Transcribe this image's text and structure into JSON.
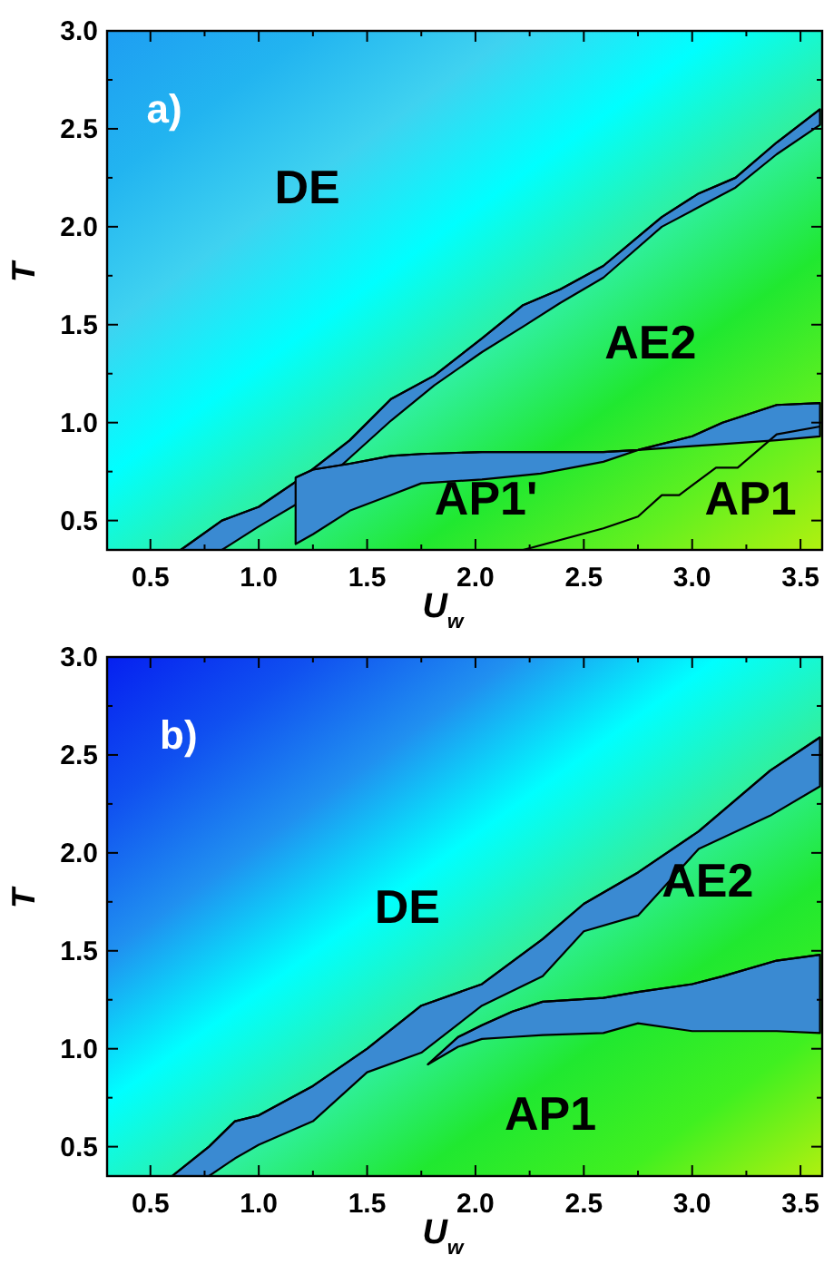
{
  "chart_data": [
    {
      "type": "area",
      "xlabel": "U$_{w}$",
      "ylabel": "T",
      "xlim": [
        0.3,
        3.6
      ],
      "ylim": [
        0.35,
        3.0
      ],
      "xticks": [
        {
          "value": 0.5,
          "label": "0.5"
        },
        {
          "value": 0.75,
          "label": null
        },
        {
          "value": 1,
          "label": "1.0"
        },
        {
          "value": 1.25,
          "label": null
        },
        {
          "value": 1.5,
          "label": "1.5"
        },
        {
          "value": 1.75,
          "label": null
        },
        {
          "value": 2,
          "label": "2.0"
        },
        {
          "value": 2.25,
          "label": null
        },
        {
          "value": 2.5,
          "label": "2.5"
        },
        {
          "value": 2.75,
          "label": null
        },
        {
          "value": 3,
          "label": "3.0"
        },
        {
          "value": 3.25,
          "label": null
        },
        {
          "value": 3.5,
          "label": "3.5"
        }
      ],
      "yticks": [
        {
          "value": 0.5,
          "label": "0.5"
        },
        {
          "value": 0.75,
          "label": null
        },
        {
          "value": 1,
          "label": "1.0"
        },
        {
          "value": 1.25,
          "label": null
        },
        {
          "value": 1.5,
          "label": "1.5"
        },
        {
          "value": 1.75,
          "label": null
        },
        {
          "value": 2,
          "label": "2.0"
        },
        {
          "value": 2.25,
          "label": null
        },
        {
          "value": 2.5,
          "label": "2.5"
        },
        {
          "value": 2.75,
          "label": null
        },
        {
          "value": 3,
          "label": "3.0"
        }
      ],
      "series": [
        {
          "type": "line",
          "color": "#000000",
          "x": [
            0.64,
            0.83,
            1.0,
            1.2,
            1.42,
            1.61,
            1.81,
            2.03,
            2.22,
            2.39,
            2.59,
            2.86,
            3.03,
            3.2,
            3.39,
            3.59
          ],
          "values": [
            0.35,
            0.5,
            0.57,
            0.72,
            0.91,
            1.12,
            1.24,
            1.43,
            1.6,
            1.68,
            1.8,
            2.05,
            2.17,
            2.25,
            2.43,
            2.6
          ],
          "upper": [
            0.35,
            0.5,
            0.57,
            0.72,
            0.91,
            1.12,
            1.24,
            1.43,
            1.6,
            1.68,
            1.8,
            2.05,
            2.17,
            2.25,
            2.43,
            2.6
          ],
          "lower": [
            0.35,
            0.35,
            0.47,
            0.6,
            0.82,
            1.01,
            1.19,
            1.36,
            1.49,
            1.61,
            1.74,
            2.0,
            2.1,
            2.2,
            2.37,
            2.52
          ]
        },
        {
          "type": "line",
          "color": "#000000",
          "x": [
            1.17,
            1.25,
            1.42,
            1.61,
            1.75,
            2.03,
            2.3,
            2.59,
            2.75,
            3.0,
            3.14,
            3.39,
            3.59
          ],
          "values": [
            0.72,
            0.76,
            0.79,
            0.83,
            0.84,
            0.85,
            0.85,
            0.85,
            0.86,
            0.93,
            1.0,
            1.09,
            1.1
          ],
          "upper": [
            0.72,
            0.76,
            0.79,
            0.83,
            0.84,
            0.85,
            0.85,
            0.85,
            0.86,
            0.93,
            1.0,
            1.09,
            1.1
          ],
          "lower": [
            0.38,
            0.43,
            0.55,
            0.63,
            0.69,
            0.71,
            0.74,
            0.8,
            0.86,
            0.88,
            0.89,
            0.91,
            0.93
          ]
        },
        {
          "type": "line",
          "color": "#000000",
          "x": [
            2.22,
            2.59,
            2.75,
            2.86,
            2.94,
            3.11,
            3.21,
            3.39,
            3.59
          ],
          "values": [
            0.35,
            0.46,
            0.52,
            0.63,
            0.63,
            0.77,
            0.77,
            0.94,
            0.98
          ]
        }
      ],
      "annotations": [
        "a)",
        "DE",
        "AE2",
        "AP1'",
        "AP1"
      ]
    },
    {
      "type": "area",
      "xlabel": "U$_{w}$",
      "ylabel": "T",
      "xlim": [
        0.3,
        3.6
      ],
      "ylim": [
        0.35,
        3.0
      ],
      "xticks": [
        {
          "value": 0.5,
          "label": "0.5"
        },
        {
          "value": 0.75,
          "label": null
        },
        {
          "value": 1,
          "label": "1.0"
        },
        {
          "value": 1.25,
          "label": null
        },
        {
          "value": 1.5,
          "label": "1.5"
        },
        {
          "value": 1.75,
          "label": null
        },
        {
          "value": 2,
          "label": "2.0"
        },
        {
          "value": 2.25,
          "label": null
        },
        {
          "value": 2.5,
          "label": "2.5"
        },
        {
          "value": 2.75,
          "label": null
        },
        {
          "value": 3,
          "label": "3.0"
        },
        {
          "value": 3.25,
          "label": null
        },
        {
          "value": 3.5,
          "label": "3.5"
        }
      ],
      "yticks": [
        {
          "value": 0.5,
          "label": "0.5"
        },
        {
          "value": 0.75,
          "label": null
        },
        {
          "value": 1,
          "label": "1.0"
        },
        {
          "value": 1.25,
          "label": null
        },
        {
          "value": 1.5,
          "label": "1.5"
        },
        {
          "value": 1.75,
          "label": null
        },
        {
          "value": 2,
          "label": "2.0"
        },
        {
          "value": 2.25,
          "label": null
        },
        {
          "value": 2.5,
          "label": "2.5"
        },
        {
          "value": 2.75,
          "label": null
        },
        {
          "value": 3,
          "label": "3.0"
        }
      ],
      "series": [
        {
          "type": "line",
          "color": "#000000",
          "x": [
            0.6,
            0.77,
            0.89,
            1.0,
            1.25,
            1.5,
            1.75,
            2.03,
            2.31,
            2.5,
            2.75,
            3.03,
            3.36,
            3.59
          ],
          "values": [
            0.35,
            0.5,
            0.63,
            0.66,
            0.81,
            1.0,
            1.22,
            1.33,
            1.56,
            1.74,
            1.9,
            2.11,
            2.42,
            2.59
          ],
          "upper": [
            0.35,
            0.5,
            0.63,
            0.66,
            0.81,
            1.0,
            1.22,
            1.33,
            1.56,
            1.74,
            1.9,
            2.11,
            2.42,
            2.59
          ],
          "lower": [
            0.35,
            0.35,
            0.44,
            0.51,
            0.63,
            0.88,
            0.98,
            1.22,
            1.37,
            1.6,
            1.68,
            2.02,
            2.19,
            2.34
          ]
        },
        {
          "type": "line",
          "color": "#000000",
          "x": [
            1.78,
            1.92,
            2.03,
            2.17,
            2.31,
            2.59,
            2.75,
            3.0,
            3.14,
            3.39,
            3.59
          ],
          "values": [
            0.92,
            1.06,
            1.12,
            1.19,
            1.24,
            1.26,
            1.29,
            1.33,
            1.37,
            1.45,
            1.48
          ],
          "upper": [
            0.92,
            1.06,
            1.12,
            1.19,
            1.24,
            1.26,
            1.29,
            1.33,
            1.37,
            1.45,
            1.48
          ],
          "lower": [
            0.92,
            1.01,
            1.05,
            1.06,
            1.07,
            1.08,
            1.13,
            1.09,
            1.09,
            1.09,
            1.08
          ]
        }
      ],
      "annotations": [
        "b)",
        "DE",
        "AE2",
        "AP1"
      ]
    }
  ]
}
